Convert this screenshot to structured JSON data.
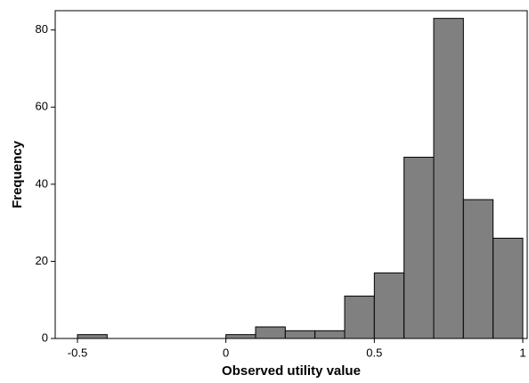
{
  "chart_data": {
    "type": "histogram",
    "x_label": "Observed utility value",
    "y_label": "Frequency",
    "bins": [
      -0.5,
      -0.4,
      -0.3,
      -0.2,
      -0.1,
      0,
      0.1,
      0.2,
      0.3,
      0.4,
      0.5,
      0.6,
      0.7,
      0.8,
      0.9,
      1.0
    ],
    "values": [
      1,
      0,
      0,
      0,
      0,
      1,
      3,
      2,
      2,
      11,
      17,
      47,
      83,
      36,
      26
    ],
    "color": "#808080",
    "xlim": [
      -0.575,
      1.015
    ],
    "xticks": [
      -0.5,
      0,
      0.5,
      1
    ],
    "ylim": [
      0,
      85
    ],
    "yticks": [
      0,
      20,
      40,
      60,
      80
    ],
    "grid": false
  }
}
